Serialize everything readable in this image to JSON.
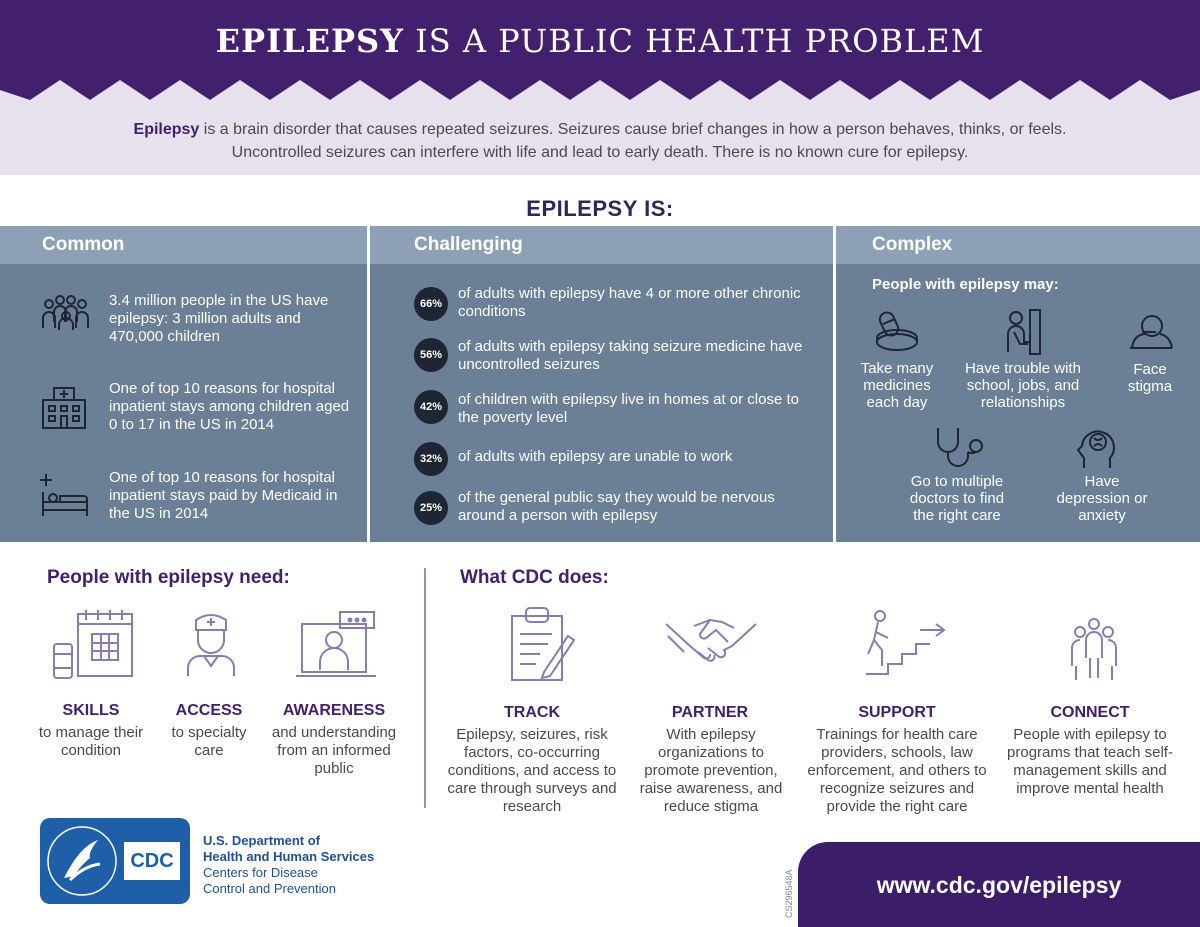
{
  "header": {
    "title_bold": "EPILEPSY",
    "title_rest": " IS A PUBLIC HEALTH PROBLEM",
    "intro_bold": "Epilepsy",
    "intro_rest": " is a brain disorder that causes repeated seizures. Seizures cause brief changes in how a person behaves, thinks, or feels. Uncontrolled seizures can interfere with life and lead to early death. There is no known cure for epilepsy."
  },
  "epilepsy_is": {
    "heading": "EPILEPSY IS:",
    "common": {
      "title": "Common",
      "items": [
        {
          "icon": "people-group-icon",
          "text": "3.4 million people in the US have epilepsy: 3 million adults and 470,000 children"
        },
        {
          "icon": "hospital-icon",
          "text": "One of top 10 reasons for hospital inpatient stays among children aged 0 to 17 in the US in 2014"
        },
        {
          "icon": "hospital-bed-icon",
          "text": "One of top 10 reasons for hospital inpatient stays paid by Medicaid in the US in 2014"
        }
      ]
    },
    "challenging": {
      "title": "Challenging",
      "stats": [
        {
          "pct": "66%",
          "text": "of adults with epilepsy have 4 or more other chronic conditions"
        },
        {
          "pct": "56%",
          "text": "of adults with epilepsy taking seizure medicine have uncontrolled seizures"
        },
        {
          "pct": "42%",
          "text": "of children with epilepsy live in homes at or close to the poverty level"
        },
        {
          "pct": "32%",
          "text": "of adults with epilepsy are unable to work"
        },
        {
          "pct": "25%",
          "text": "of the general public say they would be nervous around a person with epilepsy"
        }
      ]
    },
    "complex": {
      "title": "Complex",
      "subtitle": "People with epilepsy may:",
      "items": [
        {
          "icon": "pill-bottle-icon",
          "text": "Take many medicines each day"
        },
        {
          "icon": "sad-person-icon",
          "text": "Have trouble with school, jobs, and relationships"
        },
        {
          "icon": "hiding-person-icon",
          "text": "Face stigma"
        },
        {
          "icon": "stethoscope-icon",
          "text": "Go to multiple doctors to find the right care"
        },
        {
          "icon": "brain-head-icon",
          "text": "Have depression or anxiety"
        }
      ]
    }
  },
  "needs": {
    "title": "People with epilepsy need:",
    "items": [
      {
        "icon": "calendar-pills-icon",
        "head": "SKILLS",
        "text": "to manage their condition"
      },
      {
        "icon": "nurse-icon",
        "head": "ACCESS",
        "text": "to specialty care"
      },
      {
        "icon": "presenter-screen-icon",
        "head": "AWARENESS",
        "text": "and understanding from an informed public"
      }
    ]
  },
  "cdc_does": {
    "title": "What CDC does:",
    "items": [
      {
        "icon": "clipboard-icon",
        "head": "TRACK",
        "text": "Epilepsy, seizures, risk factors, co-occurring conditions, and access to care through surveys and research"
      },
      {
        "icon": "handshake-icon",
        "head": "PARTNER",
        "text": "With epilepsy organizations to promote prevention, raise awareness, and reduce stigma"
      },
      {
        "icon": "climbing-stairs-icon",
        "head": "SUPPORT",
        "text": "Trainings for health care providers, schools, law enforcement, and others to recognize seizures and provide the right care"
      },
      {
        "icon": "connected-people-icon",
        "head": "CONNECT",
        "text": "People with epilepsy to programs that teach self-management skills and improve mental health"
      }
    ]
  },
  "footer": {
    "logo_text": "CDC",
    "hhs_line1": "U.S. Department of",
    "hhs_line2": "Health and Human Services",
    "cdc_line1": "Centers for Disease",
    "cdc_line2": "Control and Prevention",
    "code": "CS296548A",
    "url": "www.cdc.gov/epilepsy"
  },
  "colors": {
    "purple_dark": "#43206e",
    "lavender": "#e6e1ec",
    "panel": "#6b7f96",
    "panel_head": "#8da0b5",
    "badge": "#1f2533",
    "hhs_blue": "#1f5fa8"
  }
}
